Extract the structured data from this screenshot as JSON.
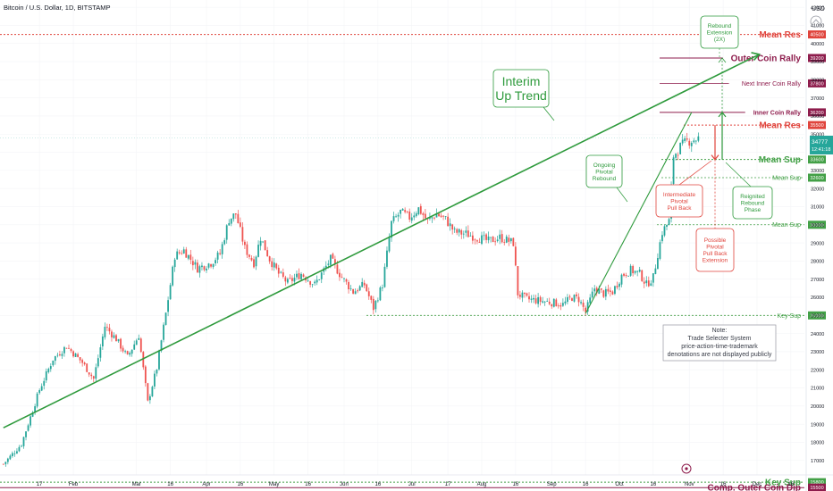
{
  "header": {
    "symbol_title": "Bitcoin / U.S. Dollar, 1D, BITSTAMP",
    "currency": "USD"
  },
  "price_label": {
    "price": "34777",
    "countdown": "12:41:18",
    "value": 34777
  },
  "note": {
    "lines": [
      "Note:",
      "Trade Selecter System",
      "price-action-time-trademark",
      "denotations are not displayed publicly"
    ]
  },
  "chart_data": {
    "type": "candlestick",
    "title": "Bitcoin / U.S. Dollar, 1D, BITSTAMP",
    "ylim": [
      16200,
      42400
    ],
    "y_ticks": [
      17000,
      18000,
      19000,
      20000,
      21000,
      22000,
      23000,
      24000,
      25000,
      26000,
      27000,
      28000,
      29000,
      30000,
      31000,
      32000,
      33000,
      34000,
      35000,
      36000,
      37000,
      38000,
      39000,
      40000,
      41000,
      42000
    ],
    "x_ticks": [
      {
        "label": "17",
        "day": 16
      },
      {
        "label": "Feb",
        "day": 31
      },
      {
        "label": "Mar",
        "day": 59
      },
      {
        "label": "16",
        "day": 74
      },
      {
        "label": "Apr",
        "day": 90
      },
      {
        "label": "16",
        "day": 105
      },
      {
        "label": "May",
        "day": 120
      },
      {
        "label": "16",
        "day": 135
      },
      {
        "label": "Jun",
        "day": 151
      },
      {
        "label": "16",
        "day": 166
      },
      {
        "label": "Jul",
        "day": 181
      },
      {
        "label": "17",
        "day": 197
      },
      {
        "label": "Aug",
        "day": 212
      },
      {
        "label": "16",
        "day": 227
      },
      {
        "label": "Sep",
        "day": 243
      },
      {
        "label": "16",
        "day": 258
      },
      {
        "label": "Oct",
        "day": 273
      },
      {
        "label": "16",
        "day": 288
      },
      {
        "label": "Nov",
        "day": 304
      },
      {
        "label": "16",
        "day": 319
      },
      {
        "label": "Dec",
        "day": 334
      },
      {
        "label": "16",
        "day": 349
      }
    ],
    "price_path": [
      [
        0,
        16800
      ],
      [
        8,
        17900
      ],
      [
        16,
        20900
      ],
      [
        22,
        22600
      ],
      [
        28,
        23300
      ],
      [
        35,
        22400
      ],
      [
        40,
        21500
      ],
      [
        45,
        24400
      ],
      [
        50,
        23700
      ],
      [
        55,
        22700
      ],
      [
        60,
        23900
      ],
      [
        64,
        20200
      ],
      [
        68,
        22100
      ],
      [
        72,
        25100
      ],
      [
        76,
        28300
      ],
      [
        80,
        28600
      ],
      [
        86,
        27600
      ],
      [
        92,
        27900
      ],
      [
        96,
        28400
      ],
      [
        100,
        30300
      ],
      [
        103,
        30600
      ],
      [
        107,
        28700
      ],
      [
        111,
        27900
      ],
      [
        114,
        29300
      ],
      [
        118,
        28100
      ],
      [
        122,
        27300
      ],
      [
        126,
        26800
      ],
      [
        132,
        27300
      ],
      [
        138,
        26700
      ],
      [
        145,
        28100
      ],
      [
        150,
        27100
      ],
      [
        155,
        26300
      ],
      [
        160,
        26700
      ],
      [
        164,
        25400
      ],
      [
        168,
        26700
      ],
      [
        172,
        30100
      ],
      [
        176,
        30700
      ],
      [
        180,
        30400
      ],
      [
        184,
        30900
      ],
      [
        188,
        30200
      ],
      [
        192,
        30600
      ],
      [
        196,
        30300
      ],
      [
        200,
        29600
      ],
      [
        205,
        29500
      ],
      [
        210,
        29300
      ],
      [
        215,
        29100
      ],
      [
        220,
        29300
      ],
      [
        226,
        29000
      ],
      [
        228,
        26200
      ],
      [
        232,
        25900
      ],
      [
        238,
        25800
      ],
      [
        244,
        25700
      ],
      [
        248,
        25600
      ],
      [
        252,
        26000
      ],
      [
        255,
        25900
      ],
      [
        258,
        25200
      ],
      [
        262,
        26500
      ],
      [
        266,
        26200
      ],
      [
        270,
        26300
      ],
      [
        274,
        27200
      ],
      [
        278,
        27500
      ],
      [
        282,
        27300
      ],
      [
        285,
        26700
      ],
      [
        288,
        27100
      ],
      [
        290,
        28400
      ],
      [
        292,
        29600
      ],
      [
        295,
        30200
      ],
      [
        297,
        33800
      ],
      [
        300,
        34300
      ],
      [
        303,
        34600
      ],
      [
        306,
        34700
      ],
      [
        308,
        34777
      ]
    ],
    "levels": [
      {
        "label": "Mean Res",
        "value": 40500,
        "tag": "40500"
      },
      {
        "label": "Outer Coin Rally",
        "value": 39200,
        "tag": "39200"
      },
      {
        "label": "Next Inner Coin Rally",
        "value": 37800,
        "tag": "37800"
      },
      {
        "label": "Inner Coin Rally",
        "value": 36200,
        "tag": "36200"
      },
      {
        "label": "Mean Res",
        "value": 35500,
        "tag": "35500"
      },
      {
        "label": "Mean Sup",
        "value": 33600,
        "tag": "33600"
      },
      {
        "label": "Mean Sup",
        "value": 32600,
        "tag": "32600"
      },
      {
        "label": "Mean Sup",
        "value": 30000,
        "tag": "30000"
      },
      {
        "label": "Key Sup",
        "value": 25000,
        "tag": "25000"
      },
      {
        "label": "Key Sup",
        "value": 15800,
        "tag": "15800"
      },
      {
        "label": "Comp. Outer Coin Dip",
        "value": 15500,
        "tag": "15500"
      }
    ],
    "trend_lines": [
      {
        "name": "interim-up-trend",
        "from": [
          0,
          18800
        ],
        "to": [
          335,
          39400
        ]
      },
      {
        "name": "rally-trend",
        "from": [
          258,
          25100
        ],
        "to": [
          305,
          36200
        ]
      }
    ],
    "annotations": {
      "interim_up_trend": "Interim Up Trend",
      "ongoing_pivotal_rebound": "Ongoing Pivotal Rebound",
      "intermediate_pivotal_pull_back": "Intermediate Pivotal Pull Back",
      "possible_pivotal_pull_back_extension": "Possible Pivotal Pull Back Extension",
      "reignited_rebound_phase": "Reignited Rebound Phase",
      "rebound_extension": "Rebound Extension (2X)"
    },
    "colors": {
      "up": "#26a69a",
      "down": "#ef5350",
      "trend": "#2e9a3c",
      "resistance": "#e0443c",
      "rally": "#8e1c4c",
      "support": "#43a047"
    }
  }
}
